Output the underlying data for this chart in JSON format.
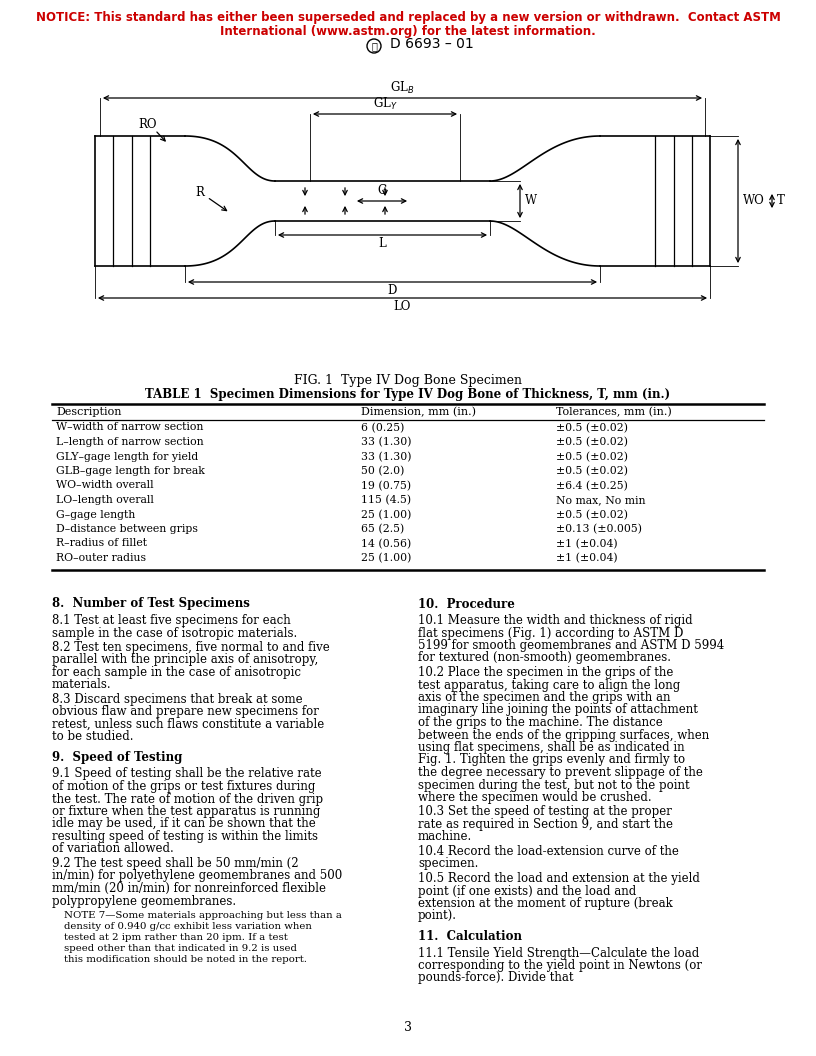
{
  "notice_line1": "NOTICE: This standard has either been superseded and replaced by a new version or withdrawn.  Contact ASTM",
  "notice_line2": "International (www.astm.org) for the latest information.",
  "notice_color": "#cc0000",
  "doc_id": "D 6693 – 01",
  "fig_caption": "FIG. 1  Type IV Dog Bone Specimen",
  "table_title": "TABLE 1  Specimen Dimensions for Type IV Dog Bone of Thickness, T, mm (in.)",
  "table_headers": [
    "Description",
    "Dimension, mm (in.)",
    "Tolerances, mm (in.)"
  ],
  "table_rows": [
    [
      "W–width of narrow section",
      "6 (0.25)",
      "±0.5 (±0.02)"
    ],
    [
      "L–length of narrow section",
      "33 (1.30)",
      "±0.5 (±0.02)"
    ],
    [
      "GLY–gage length for yield",
      "33 (1.30)",
      "±0.5 (±0.02)"
    ],
    [
      "GLB–gage length for break",
      "50 (2.0)",
      "±0.5 (±0.02)"
    ],
    [
      "WO–width overall",
      "19 (0.75)",
      "±6.4 (±0.25)"
    ],
    [
      "LO–length overall",
      "115 (4.5)",
      "No max, No min"
    ],
    [
      "G–gage length",
      "25 (1.00)",
      "±0.5 (±0.02)"
    ],
    [
      "D–distance between grips",
      "65 (2.5)",
      "±0.13 (±0.005)"
    ],
    [
      "R–radius of fillet",
      "14 (0.56)",
      "±1 (±0.04)"
    ],
    [
      "RO–outer radius",
      "25 (1.00)",
      "±1 (±0.04)"
    ]
  ],
  "section8_title": "8.  Number of Test Specimens",
  "section8_paras": [
    "8.1  Test at least five specimens for each sample in the case of isotropic materials.",
    "8.2  Test ten specimens, five normal to and five parallel with the principle axis of anisotropy, for each sample in the case of anisotropic materials.",
    "8.3  Discard specimens that break at some obvious flaw and prepare new specimens for retest, unless such flaws constitute a variable to be studied."
  ],
  "section9_title": "9.  Speed of Testing",
  "section9_paras": [
    "9.1  Speed of testing shall be the relative rate of motion of the grips or test fixtures during the test. The rate of motion of the driven grip or fixture when the test apparatus is running idle may be used, if it can be shown that the resulting speed of testing is within the limits of variation allowed.",
    "9.2  The test speed shall be 50 mm/min (2 in/min) for polyethylene geomembranes and 500 mm/min (20 in/min) for nonreinforced flexible polypropylene geomembranes."
  ],
  "section9_note": "NOTE 7—Some materials approaching but less than a density of 0.940 g/cc exhibit less variation when tested at 2 ipm rather than 20 ipm. If a test speed other than that indicated in 9.2 is used this modification should be noted in the report.",
  "section10_title": "10.  Procedure",
  "section10_paras": [
    "10.1  Measure the width and thickness of rigid flat specimens (Fig. 1) according to ASTM D 5199 for smooth geomembranes and ASTM D 5994 for textured (non-smooth) geomembranes.",
    "10.2  Place the specimen in the grips of the test apparatus, taking care to align the long axis of the specimen and the grips with an imaginary line joining the points of attachment of the grips to the machine. The distance between the ends of the gripping surfaces, when using flat specimens, shall be as indicated in Fig. 1. Tighten the grips evenly and firmly to the degree necessary to prevent slippage of the specimen during the test, but not to the point where the specimen would be crushed.",
    "10.3  Set the speed of testing at the proper rate as required in Section 9, and start the machine.",
    "10.4  Record the load-extension curve of the specimen.",
    "10.5  Record the load and extension at the yield point (if one exists) and the load and extension at the moment of rupture (break point)."
  ],
  "section11_title": "11.  Calculation",
  "section11_paras": [
    "11.1  Tensile Yield Strength—Calculate the load corresponding to the yield point in Newtons (or pounds-force). Divide that"
  ],
  "page_number": "3",
  "bg_color": "#ffffff",
  "text_color": "#000000"
}
